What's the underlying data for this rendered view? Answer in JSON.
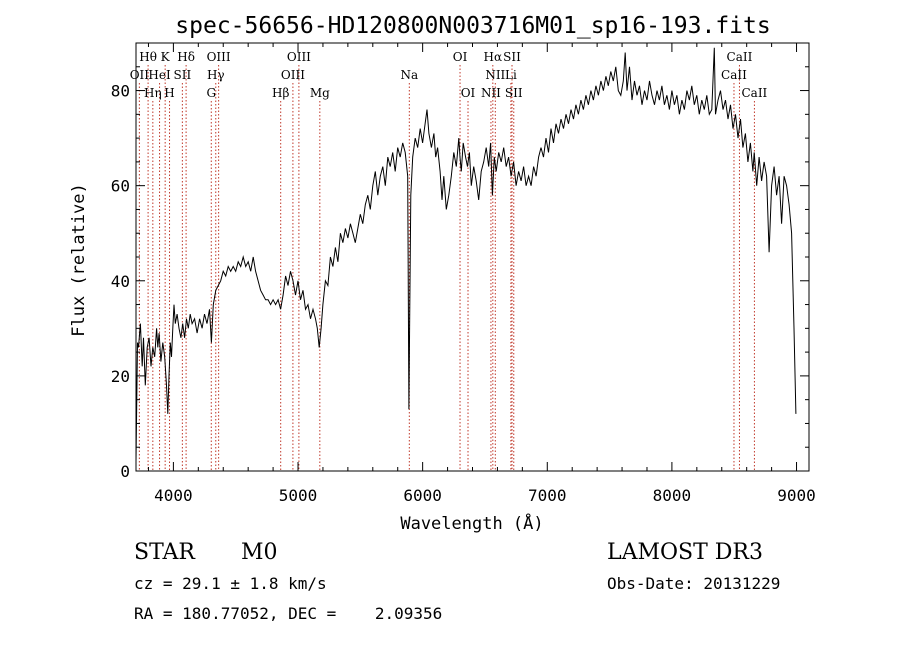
{
  "chart_data": {
    "type": "line",
    "title": "spec-56656-HD120800N003716M01_sp16-193.fits",
    "xlabel": "Wavelength (Å)",
    "ylabel": "Flux (relative)",
    "xlim": [
      3700,
      9100
    ],
    "ylim": [
      0,
      90
    ],
    "xticks": [
      4000,
      5000,
      6000,
      7000,
      8000,
      9000
    ],
    "yticks": [
      0,
      20,
      40,
      60,
      80
    ],
    "grid": false,
    "series": [
      {
        "points": [
          [
            3700,
            2
          ],
          [
            3705,
            12
          ],
          [
            3712,
            27
          ],
          [
            3720,
            26
          ],
          [
            3735,
            31
          ],
          [
            3750,
            22
          ],
          [
            3760,
            28
          ],
          [
            3775,
            18
          ],
          [
            3790,
            26
          ],
          [
            3805,
            28
          ],
          [
            3820,
            22
          ],
          [
            3835,
            26
          ],
          [
            3850,
            24
          ],
          [
            3865,
            30
          ],
          [
            3875,
            26
          ],
          [
            3885,
            29
          ],
          [
            3900,
            23
          ],
          [
            3915,
            27
          ],
          [
            3930,
            24
          ],
          [
            3945,
            18
          ],
          [
            3955,
            12
          ],
          [
            3965,
            20
          ],
          [
            3975,
            27
          ],
          [
            3985,
            24
          ],
          [
            3995,
            30
          ],
          [
            4005,
            35
          ],
          [
            4015,
            31
          ],
          [
            4030,
            33
          ],
          [
            4045,
            30
          ],
          [
            4060,
            28
          ],
          [
            4075,
            31
          ],
          [
            4090,
            28
          ],
          [
            4105,
            32
          ],
          [
            4120,
            30
          ],
          [
            4135,
            33
          ],
          [
            4150,
            31
          ],
          [
            4170,
            32
          ],
          [
            4190,
            29
          ],
          [
            4210,
            32
          ],
          [
            4230,
            30
          ],
          [
            4250,
            33
          ],
          [
            4270,
            31
          ],
          [
            4290,
            34
          ],
          [
            4305,
            27
          ],
          [
            4320,
            35
          ],
          [
            4340,
            38
          ],
          [
            4360,
            39
          ],
          [
            4380,
            40
          ],
          [
            4400,
            42
          ],
          [
            4420,
            41
          ],
          [
            4440,
            43
          ],
          [
            4460,
            42
          ],
          [
            4480,
            43
          ],
          [
            4500,
            42
          ],
          [
            4520,
            44
          ],
          [
            4540,
            43
          ],
          [
            4560,
            45
          ],
          [
            4580,
            43
          ],
          [
            4600,
            44
          ],
          [
            4620,
            42
          ],
          [
            4640,
            45
          ],
          [
            4660,
            42
          ],
          [
            4680,
            40
          ],
          [
            4700,
            38
          ],
          [
            4720,
            37
          ],
          [
            4740,
            36
          ],
          [
            4760,
            36
          ],
          [
            4780,
            35
          ],
          [
            4800,
            36
          ],
          [
            4820,
            35
          ],
          [
            4840,
            36
          ],
          [
            4860,
            34
          ],
          [
            4880,
            37
          ],
          [
            4900,
            41
          ],
          [
            4920,
            39
          ],
          [
            4940,
            42
          ],
          [
            4960,
            40
          ],
          [
            4980,
            37
          ],
          [
            5000,
            40
          ],
          [
            5020,
            36
          ],
          [
            5040,
            38
          ],
          [
            5060,
            34
          ],
          [
            5080,
            35
          ],
          [
            5100,
            32
          ],
          [
            5120,
            34
          ],
          [
            5140,
            32
          ],
          [
            5155,
            30
          ],
          [
            5170,
            26
          ],
          [
            5185,
            30
          ],
          [
            5200,
            35
          ],
          [
            5220,
            40
          ],
          [
            5240,
            39
          ],
          [
            5260,
            45
          ],
          [
            5280,
            43
          ],
          [
            5300,
            47
          ],
          [
            5320,
            44
          ],
          [
            5340,
            50
          ],
          [
            5360,
            48
          ],
          [
            5380,
            51
          ],
          [
            5400,
            49
          ],
          [
            5420,
            52
          ],
          [
            5440,
            50
          ],
          [
            5460,
            48
          ],
          [
            5480,
            51
          ],
          [
            5500,
            54
          ],
          [
            5520,
            52
          ],
          [
            5540,
            56
          ],
          [
            5560,
            58
          ],
          [
            5580,
            55
          ],
          [
            5600,
            60
          ],
          [
            5620,
            63
          ],
          [
            5640,
            58
          ],
          [
            5660,
            62
          ],
          [
            5680,
            64
          ],
          [
            5700,
            60
          ],
          [
            5720,
            66
          ],
          [
            5740,
            64
          ],
          [
            5760,
            67
          ],
          [
            5780,
            63
          ],
          [
            5800,
            68
          ],
          [
            5820,
            66
          ],
          [
            5840,
            69
          ],
          [
            5860,
            67
          ],
          [
            5880,
            62
          ],
          [
            5890,
            13
          ],
          [
            5895,
            30
          ],
          [
            5905,
            58
          ],
          [
            5920,
            66
          ],
          [
            5940,
            70
          ],
          [
            5960,
            68
          ],
          [
            5980,
            72
          ],
          [
            6000,
            69
          ],
          [
            6020,
            73
          ],
          [
            6035,
            76
          ],
          [
            6050,
            71
          ],
          [
            6070,
            68
          ],
          [
            6090,
            71
          ],
          [
            6105,
            66
          ],
          [
            6120,
            68
          ],
          [
            6140,
            63
          ],
          [
            6155,
            57
          ],
          [
            6170,
            62
          ],
          [
            6190,
            55
          ],
          [
            6210,
            58
          ],
          [
            6230,
            62
          ],
          [
            6250,
            67
          ],
          [
            6270,
            64
          ],
          [
            6290,
            70
          ],
          [
            6300,
            66
          ],
          [
            6310,
            63
          ],
          [
            6325,
            69
          ],
          [
            6345,
            66
          ],
          [
            6360,
            64
          ],
          [
            6375,
            67
          ],
          [
            6390,
            60
          ],
          [
            6410,
            64
          ],
          [
            6430,
            61
          ],
          [
            6450,
            57
          ],
          [
            6470,
            63
          ],
          [
            6490,
            65
          ],
          [
            6510,
            68
          ],
          [
            6530,
            64
          ],
          [
            6545,
            69
          ],
          [
            6560,
            58
          ],
          [
            6575,
            66
          ],
          [
            6590,
            63
          ],
          [
            6610,
            67
          ],
          [
            6630,
            65
          ],
          [
            6650,
            68
          ],
          [
            6670,
            64
          ],
          [
            6690,
            66
          ],
          [
            6710,
            62
          ],
          [
            6730,
            65
          ],
          [
            6750,
            60
          ],
          [
            6770,
            63
          ],
          [
            6790,
            61
          ],
          [
            6810,
            64
          ],
          [
            6830,
            60
          ],
          [
            6850,
            62
          ],
          [
            6870,
            60
          ],
          [
            6890,
            64
          ],
          [
            6910,
            62
          ],
          [
            6930,
            66
          ],
          [
            6950,
            68
          ],
          [
            6970,
            66
          ],
          [
            6990,
            70
          ],
          [
            7010,
            67
          ],
          [
            7030,
            72
          ],
          [
            7050,
            69
          ],
          [
            7070,
            73
          ],
          [
            7090,
            71
          ],
          [
            7110,
            74
          ],
          [
            7130,
            72
          ],
          [
            7150,
            75
          ],
          [
            7170,
            73
          ],
          [
            7190,
            76
          ],
          [
            7210,
            74
          ],
          [
            7230,
            77
          ],
          [
            7250,
            75
          ],
          [
            7270,
            78
          ],
          [
            7290,
            76
          ],
          [
            7310,
            79
          ],
          [
            7330,
            77
          ],
          [
            7350,
            80
          ],
          [
            7370,
            78
          ],
          [
            7390,
            81
          ],
          [
            7410,
            79
          ],
          [
            7430,
            82
          ],
          [
            7450,
            80
          ],
          [
            7470,
            83
          ],
          [
            7490,
            81
          ],
          [
            7510,
            84
          ],
          [
            7530,
            82
          ],
          [
            7550,
            85
          ],
          [
            7570,
            80
          ],
          [
            7590,
            79
          ],
          [
            7610,
            82
          ],
          [
            7625,
            88
          ],
          [
            7640,
            80
          ],
          [
            7660,
            85
          ],
          [
            7680,
            78
          ],
          [
            7700,
            82
          ],
          [
            7720,
            79
          ],
          [
            7740,
            81
          ],
          [
            7760,
            77
          ],
          [
            7780,
            80
          ],
          [
            7800,
            78
          ],
          [
            7820,
            82
          ],
          [
            7840,
            79
          ],
          [
            7860,
            77
          ],
          [
            7880,
            80
          ],
          [
            7900,
            78
          ],
          [
            7920,
            81
          ],
          [
            7940,
            77
          ],
          [
            7960,
            79
          ],
          [
            7980,
            76
          ],
          [
            8000,
            80
          ],
          [
            8020,
            77
          ],
          [
            8040,
            79
          ],
          [
            8060,
            75
          ],
          [
            8080,
            78
          ],
          [
            8100,
            76
          ],
          [
            8120,
            80
          ],
          [
            8140,
            78
          ],
          [
            8160,
            81
          ],
          [
            8180,
            77
          ],
          [
            8200,
            79
          ],
          [
            8220,
            75
          ],
          [
            8240,
            78
          ],
          [
            8260,
            76
          ],
          [
            8280,
            79
          ],
          [
            8300,
            75
          ],
          [
            8320,
            76
          ],
          [
            8340,
            89
          ],
          [
            8350,
            75
          ],
          [
            8370,
            78
          ],
          [
            8390,
            80
          ],
          [
            8410,
            76
          ],
          [
            8430,
            78
          ],
          [
            8450,
            74
          ],
          [
            8470,
            77
          ],
          [
            8490,
            72
          ],
          [
            8510,
            75
          ],
          [
            8530,
            70
          ],
          [
            8550,
            74
          ],
          [
            8570,
            68
          ],
          [
            8590,
            71
          ],
          [
            8610,
            65
          ],
          [
            8630,
            69
          ],
          [
            8650,
            63
          ],
          [
            8660,
            67
          ],
          [
            8680,
            60
          ],
          [
            8700,
            66
          ],
          [
            8720,
            61
          ],
          [
            8740,
            65
          ],
          [
            8760,
            62
          ],
          [
            8780,
            46
          ],
          [
            8800,
            60
          ],
          [
            8820,
            64
          ],
          [
            8840,
            58
          ],
          [
            8860,
            62
          ],
          [
            8880,
            52
          ],
          [
            8900,
            62
          ],
          [
            8920,
            60
          ],
          [
            8940,
            56
          ],
          [
            8960,
            50
          ],
          [
            8980,
            30
          ],
          [
            8995,
            12
          ]
        ]
      }
    ],
    "lines": [
      {
        "label": "Hθ",
        "x": 3797,
        "row": 0
      },
      {
        "label": "OII",
        "x": 3727,
        "row": 1
      },
      {
        "label": "Hη",
        "x": 3835,
        "row": 2
      },
      {
        "label": "HeI",
        "x": 3889,
        "row": 1
      },
      {
        "label": "K",
        "x": 3934,
        "row": 0
      },
      {
        "label": "SII",
        "x": 4072,
        "row": 1
      },
      {
        "label": "H",
        "x": 3969,
        "row": 2
      },
      {
        "label": "Hδ",
        "x": 4102,
        "row": 0
      },
      {
        "label": "OIII",
        "x": 4363,
        "row": 0
      },
      {
        "label": "Hγ",
        "x": 4340,
        "row": 1
      },
      {
        "label": "G",
        "x": 4304,
        "row": 2
      },
      {
        "label": "OIII",
        "x": 5007,
        "row": 0
      },
      {
        "label": "OIII",
        "x": 4959,
        "row": 1
      },
      {
        "label": "Hβ",
        "x": 4861,
        "row": 2
      },
      {
        "label": "Mg",
        "x": 5175,
        "row": 2
      },
      {
        "label": "Na",
        "x": 5893,
        "row": 1
      },
      {
        "label": "OI",
        "x": 6300,
        "row": 0
      },
      {
        "label": "OI",
        "x": 6364,
        "row": 2
      },
      {
        "label": "Hα",
        "x": 6563,
        "row": 0
      },
      {
        "label": "SII",
        "x": 6717,
        "row": 0
      },
      {
        "label": "NII",
        "x": 6583,
        "row": 1
      },
      {
        "label": "Li",
        "x": 6708,
        "row": 1
      },
      {
        "label": "NII",
        "x": 6548,
        "row": 2
      },
      {
        "label": "SII",
        "x": 6731,
        "row": 2
      },
      {
        "label": "CaII",
        "x": 8542,
        "row": 0
      },
      {
        "label": "CaII",
        "x": 8498,
        "row": 1
      },
      {
        "label": "CaII",
        "x": 8662,
        "row": 2
      }
    ]
  },
  "info": {
    "object_class": "STAR",
    "subclass": "M0",
    "survey": "LAMOST DR3",
    "redshift": "cz = 29.1 ± 1.8 km/s",
    "obs_date": "Obs-Date: 20131229",
    "coords": "RA = 180.77052, DEC =    2.09356"
  }
}
